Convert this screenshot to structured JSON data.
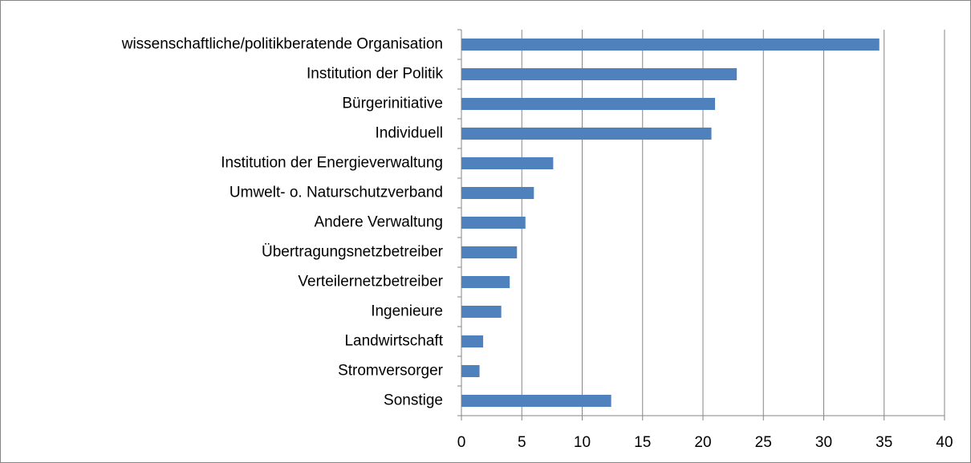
{
  "chart_data": {
    "type": "bar",
    "orientation": "horizontal",
    "categories": [
      "wissenschaftliche/politikberatende Organisation",
      "Institution der Politik",
      "Bürgerinitiative",
      "Individuell",
      "Institution der Energieverwaltung",
      "Umwelt- o. Naturschutzverband",
      "Andere Verwaltung",
      "Übertragungsnetzbetreiber",
      "Verteilernetzbetreiber",
      "Ingenieure",
      "Landwirtschaft",
      "Stromversorger",
      "Sonstige"
    ],
    "values": [
      34.6,
      22.8,
      21.0,
      20.7,
      7.6,
      6.0,
      5.3,
      4.6,
      4.0,
      3.3,
      1.8,
      1.5,
      12.4
    ],
    "color": "#4f81bd",
    "xlim": [
      0,
      40
    ],
    "xticks": [
      0,
      5,
      10,
      15,
      20,
      25,
      30,
      35,
      40
    ],
    "grid": true
  }
}
